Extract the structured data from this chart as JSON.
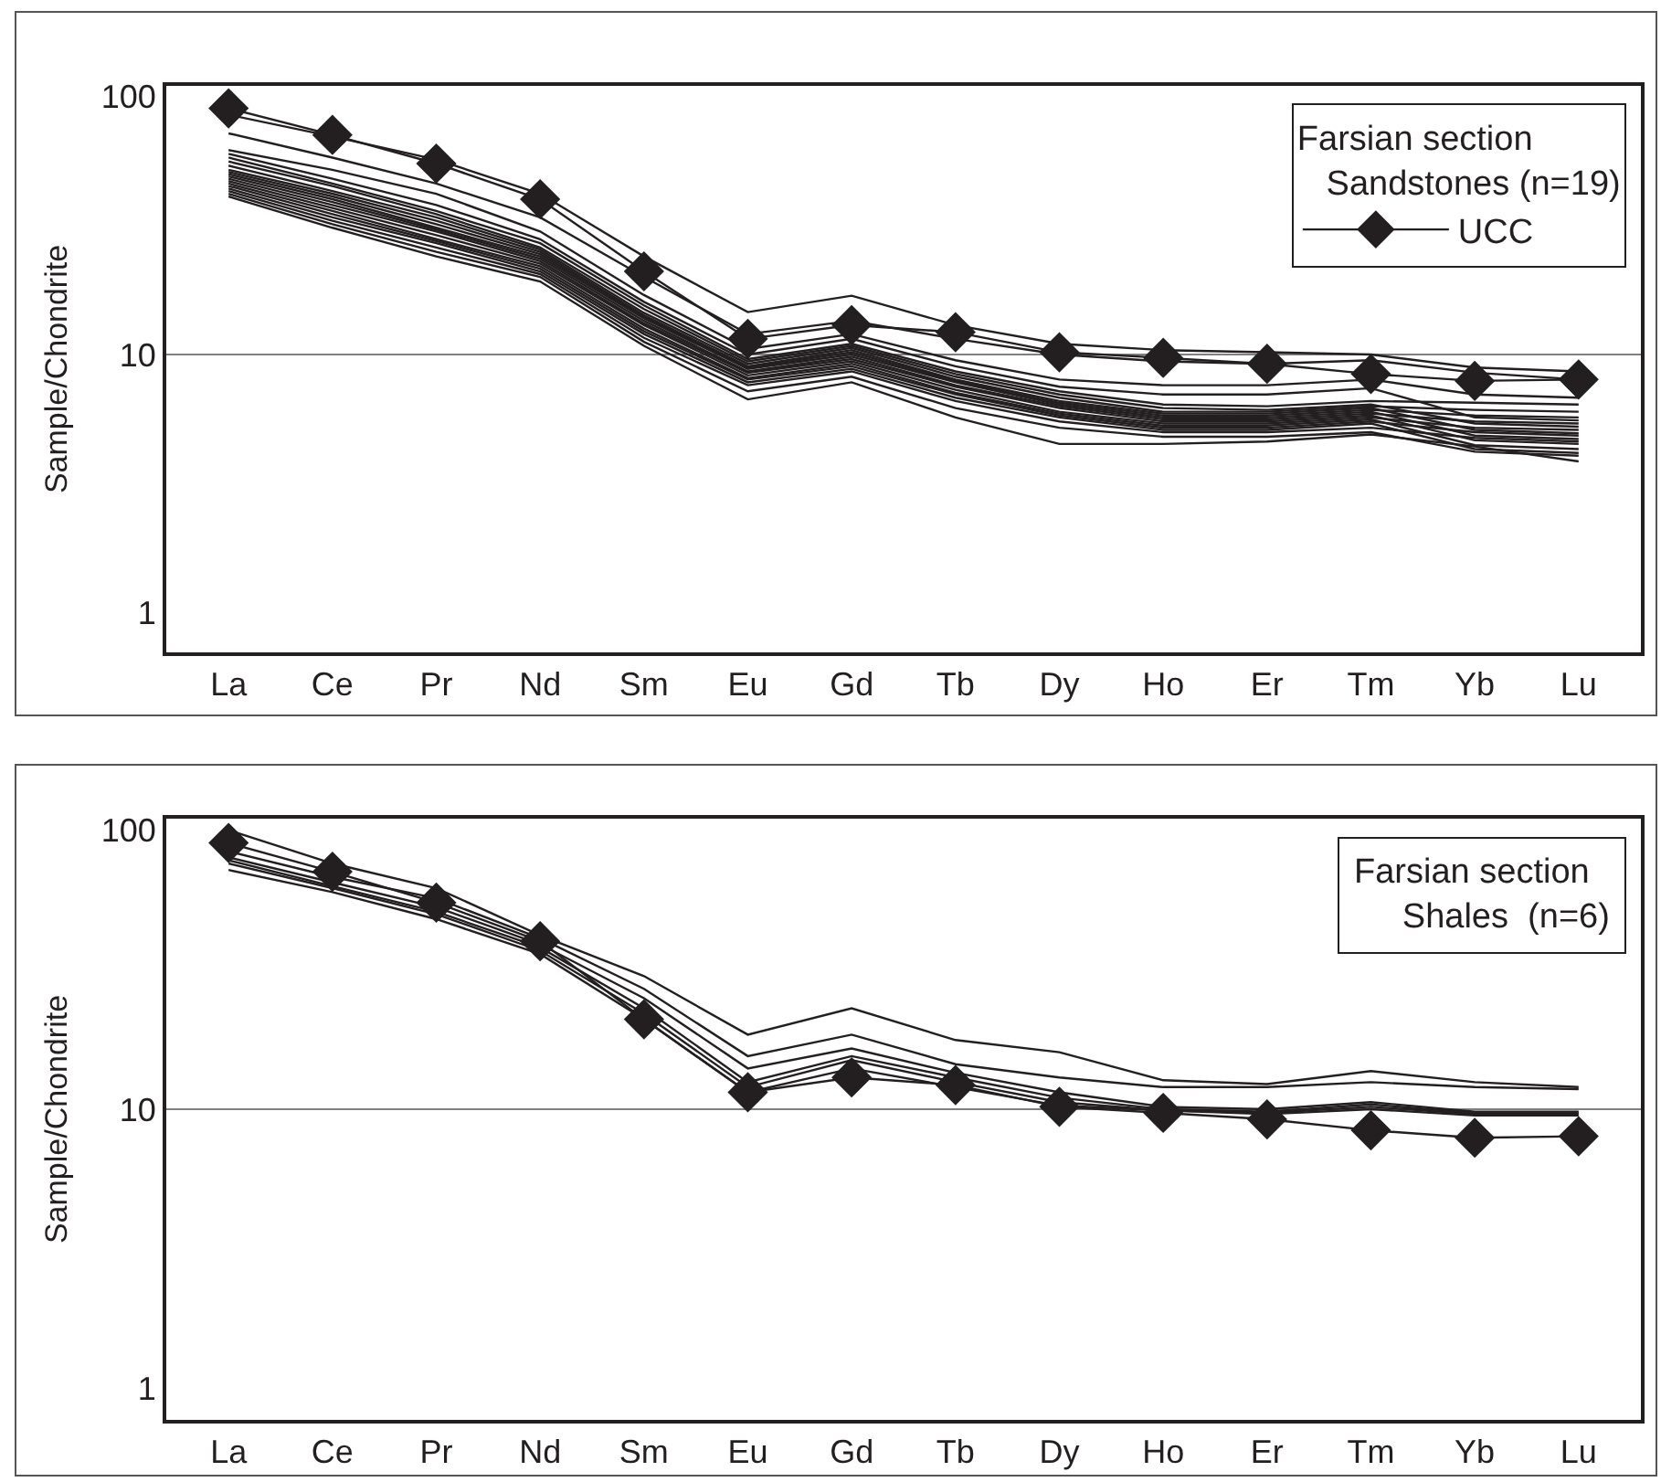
{
  "chart_data": [
    {
      "type": "line",
      "ylabel": "Sample/Chondrite",
      "legend_title": "Farsian section\n   Sandstones (n=19)",
      "legend": "top right",
      "log": true,
      "ylim": [
        0.7,
        110
      ],
      "yticks": [
        1,
        10,
        100
      ],
      "marker": "none",
      "ref_lines": [
        {
          "axis": "y",
          "value": 10,
          "color": "#808080"
        }
      ],
      "categories": [
        "La",
        "Ce",
        "Pr",
        "Nd",
        "Sm",
        "Eu",
        "Gd",
        "Tb",
        "Dy",
        "Ho",
        "Er",
        "Tm",
        "Yb",
        "Lu"
      ],
      "series": [
        {
          "color": "#231f20",
          "values": [
            85,
            70,
            57,
            42,
            24,
            14.6,
            16.9,
            13,
            11,
            10.4,
            10.2,
            10,
            8.9,
            8.6
          ]
        },
        {
          "color": "#231f20",
          "values": [
            72,
            58,
            46,
            34,
            20,
            12,
            13.5,
            11.5,
            10,
            9.4,
            9.2,
            9.5,
            8.5,
            8.0
          ]
        },
        {
          "color": "#231f20",
          "values": [
            62,
            52,
            42,
            30,
            17,
            10.5,
            12,
            9.5,
            8.0,
            7.6,
            7.6,
            8.0,
            7.0,
            6.8
          ]
        },
        {
          "color": "#231f20",
          "values": [
            60,
            48,
            38,
            28,
            16,
            10,
            11.5,
            9,
            7.5,
            7.0,
            7.0,
            7.4,
            5.7,
            5.55
          ]
        },
        {
          "color": "#231f20",
          "values": [
            58,
            46,
            36,
            27,
            15.5,
            9.6,
            11,
            8.6,
            7.2,
            6.4,
            6.3,
            6.6,
            6.5,
            6.4
          ]
        },
        {
          "color": "#231f20",
          "values": [
            56,
            45,
            35,
            26,
            15,
            9.4,
            10.8,
            8.4,
            7.0,
            6.2,
            6.1,
            6.4,
            5.4,
            5.25
          ]
        },
        {
          "color": "#231f20",
          "values": [
            54,
            43,
            34,
            25.5,
            14.5,
            9.2,
            10.6,
            8.2,
            6.8,
            6.0,
            6.0,
            6.3,
            6.1,
            6.0
          ]
        },
        {
          "color": "#231f20",
          "values": [
            52,
            42,
            33,
            25,
            14.2,
            9.0,
            10.4,
            8.0,
            6.6,
            5.9,
            5.9,
            6.2,
            5.1,
            4.95
          ]
        },
        {
          "color": "#231f20",
          "values": [
            51,
            41,
            32,
            24.5,
            14,
            8.9,
            10.2,
            7.9,
            6.5,
            5.8,
            5.8,
            6.1,
            5.8,
            5.7
          ]
        },
        {
          "color": "#231f20",
          "values": [
            50,
            40,
            31,
            24,
            13.8,
            8.8,
            10,
            7.8,
            6.4,
            5.7,
            5.7,
            6.0,
            4.85,
            4.7
          ]
        },
        {
          "color": "#231f20",
          "values": [
            49,
            39,
            30.5,
            23.5,
            13.5,
            8.6,
            9.8,
            7.6,
            6.3,
            5.6,
            5.6,
            5.9,
            5.5,
            5.4
          ]
        },
        {
          "color": "#231f20",
          "values": [
            48,
            38,
            30,
            23,
            13.2,
            8.5,
            9.6,
            7.5,
            6.2,
            5.5,
            5.5,
            5.8,
            4.65,
            4.5
          ]
        },
        {
          "color": "#231f20",
          "values": [
            47,
            37,
            29,
            22.5,
            13,
            8.3,
            9.4,
            7.3,
            6.0,
            5.4,
            5.4,
            5.7,
            5.2,
            5.1
          ]
        },
        {
          "color": "#231f20",
          "values": [
            46,
            36,
            28,
            22,
            12.6,
            8.1,
            9.2,
            7.1,
            5.9,
            5.3,
            5.3,
            5.6,
            4.45,
            4.3
          ]
        },
        {
          "color": "#231f20",
          "values": [
            45,
            35,
            27.5,
            21.5,
            12.3,
            8.0,
            9.0,
            7.0,
            5.8,
            5.2,
            5.2,
            5.5,
            5.0,
            4.85
          ]
        },
        {
          "color": "#231f20",
          "values": [
            44,
            34,
            27,
            21,
            12,
            7.8,
            8.8,
            6.8,
            5.7,
            5.1,
            5.1,
            5.4,
            4.3,
            4.15
          ]
        },
        {
          "color": "#231f20",
          "values": [
            43,
            33,
            26,
            20.5,
            11.6,
            7.6,
            8.6,
            6.6,
            5.5,
            5.0,
            5.0,
            5.2,
            4.75,
            4.6
          ]
        },
        {
          "color": "#231f20",
          "values": [
            42,
            32,
            25,
            20,
            11.2,
            7.2,
            8.2,
            6.2,
            5.2,
            4.8,
            4.8,
            5.0,
            4.2,
            4.05
          ]
        },
        {
          "color": "#231f20",
          "values": [
            41,
            31,
            24,
            19.2,
            10.8,
            6.7,
            7.8,
            5.7,
            4.5,
            4.5,
            4.6,
            4.9,
            4.4,
            3.85
          ]
        },
        {
          "name": "UCC",
          "color": "#231f20",
          "marker": "diamond",
          "values": [
            90,
            71,
            55,
            40,
            21,
            11.5,
            13,
            12.2,
            10.2,
            9.7,
            9.2,
            8.4,
            7.9,
            8.0
          ]
        }
      ]
    },
    {
      "type": "line",
      "ylabel": "Sample/Chondrite",
      "legend_title": "Farsian section\n     Shales  (n=6)",
      "legend": "top right",
      "log": true,
      "ylim": [
        0.77,
        110
      ],
      "yticks": [
        1,
        10,
        100
      ],
      "marker": "none",
      "ref_lines": [
        {
          "axis": "y",
          "value": 10,
          "color": "#808080"
        }
      ],
      "categories": [
        "La",
        "Ce",
        "Pr",
        "Nd",
        "Sm",
        "Eu",
        "Gd",
        "Tb",
        "Dy",
        "Ho",
        "Er",
        "Tm",
        "Yb",
        "Lu"
      ],
      "series": [
        {
          "color": "#231f20",
          "values": [
            100,
            76,
            62,
            42,
            30,
            18.5,
            23,
            17.7,
            16,
            12.7,
            12.3,
            13.7,
            12.5,
            12
          ]
        },
        {
          "color": "#231f20",
          "values": [
            84,
            68,
            57,
            41,
            27,
            15.5,
            18.5,
            14.5,
            13,
            12,
            12,
            12.5,
            12,
            11.8
          ]
        },
        {
          "color": "#231f20",
          "values": [
            80,
            65,
            53,
            39,
            25,
            14,
            16.5,
            13.5,
            11.5,
            10.2,
            10.0,
            10.6,
            9.8,
            9.8
          ]
        },
        {
          "color": "#231f20",
          "values": [
            78,
            63,
            51,
            38,
            23,
            12.5,
            15.5,
            13,
            11,
            10,
            9.8,
            10.4,
            9.7,
            9.7
          ]
        },
        {
          "color": "#231f20",
          "values": [
            76,
            62,
            50,
            37,
            22,
            12,
            15,
            12.5,
            10.6,
            9.9,
            9.7,
            10.2,
            9.6,
            9.6
          ]
        },
        {
          "color": "#231f20",
          "values": [
            72,
            60,
            48,
            36,
            21,
            11.5,
            14,
            12,
            10.3,
            9.9,
            9.6,
            10.0,
            9.5,
            9.5
          ]
        },
        {
          "color": "#231f20",
          "marker": "diamond",
          "values": [
            90,
            71,
            55,
            40,
            21,
            11.5,
            13,
            12.2,
            10.2,
            9.7,
            9.2,
            8.4,
            7.9,
            8.0
          ]
        }
      ]
    }
  ]
}
